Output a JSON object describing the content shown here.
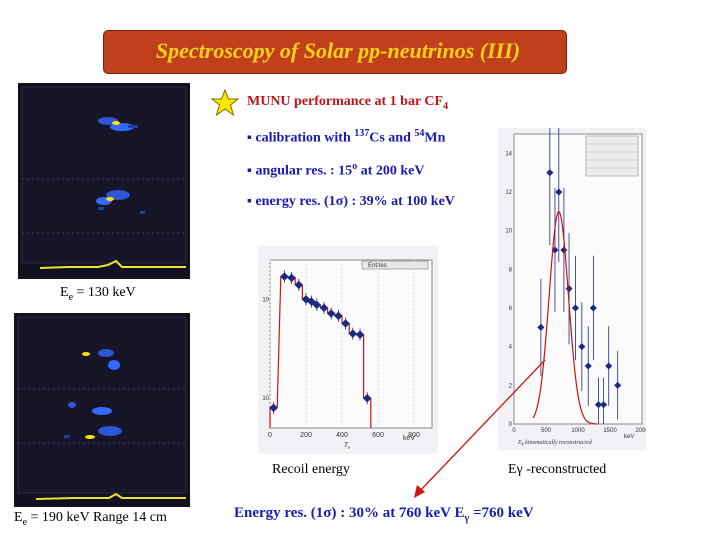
{
  "title": "Spectroscopy of Solar pp-neutrinos (III)",
  "header": {
    "text": "MUNU performance at 1 bar CF",
    "sub": "4"
  },
  "bullets": [
    {
      "marker": "▪",
      "parts": [
        "calibration with ",
        "137",
        "Cs  and ",
        "54",
        "Mn"
      ]
    },
    {
      "marker": "▪",
      "parts": [
        "angular res. : 15",
        "o",
        " at 200 keV"
      ]
    },
    {
      "marker": "▪",
      "parts": [
        "energy res. (1",
        "σ",
        ") :  39% at 100 keV"
      ]
    }
  ],
  "event_labels": {
    "top": {
      "base": "E",
      "sub": "e",
      "rest": " = 130 keV"
    },
    "bottom": {
      "base": "E",
      "sub": "e",
      "rest": " = 190 keV   Range 14 cm"
    }
  },
  "recoil_caption": "Recoil energy",
  "egamma_caption": "Eγ -reconstructed",
  "bottom_line": {
    "text": "Energy res. (1σ) :  30% at 760 keV  E",
    "sub": "γ",
    "rest": " =760 keV"
  },
  "colors": {
    "title_bg": "#c0401c",
    "title_text": "#ffd21a",
    "blue_text": "#1a1ab0",
    "red_text": "#c0141c",
    "star": "#ffe600"
  },
  "chart_data": [
    {
      "type": "line",
      "name": "recoil_spectrum",
      "xlabel": "T",
      "xlabel_sub": "e",
      "xunit": "keV",
      "legend": "Entries",
      "x_ticks": [
        "0",
        "200",
        "400",
        "600",
        "800"
      ],
      "y_ticks": [
        "10",
        "10"
      ],
      "ylog": true,
      "xlim": [
        0,
        900
      ],
      "ylim": [
        5,
        250
      ],
      "x": [
        20,
        80,
        120,
        160,
        200,
        230,
        260,
        300,
        340,
        380,
        420,
        460,
        500,
        540
      ],
      "y": [
        8,
        170,
        165,
        140,
        100,
        95,
        88,
        82,
        72,
        68,
        57,
        45,
        44,
        10
      ]
    },
    {
      "type": "line",
      "name": "egamma_spectrum",
      "xlabel": "E",
      "xlabel_sub": "γ",
      "xlabel_rest": " kinematically reconstructed",
      "xunit": "keV",
      "x_ticks": [
        "0",
        "500",
        "1000",
        "1500",
        "2000"
      ],
      "y_ticks": [
        "0",
        "2",
        "4",
        "6",
        "8",
        "10",
        "12",
        "14"
      ],
      "xlim": [
        0,
        2000
      ],
      "ylim": [
        0,
        15
      ],
      "x": [
        420,
        560,
        640,
        700,
        780,
        860,
        960,
        1060,
        1160,
        1240,
        1320,
        1400,
        1480,
        1620
      ],
      "y": [
        5,
        13,
        9,
        12,
        9,
        7,
        6,
        4,
        3,
        6,
        1,
        1,
        3,
        2
      ],
      "fit_peak": 700
    }
  ]
}
